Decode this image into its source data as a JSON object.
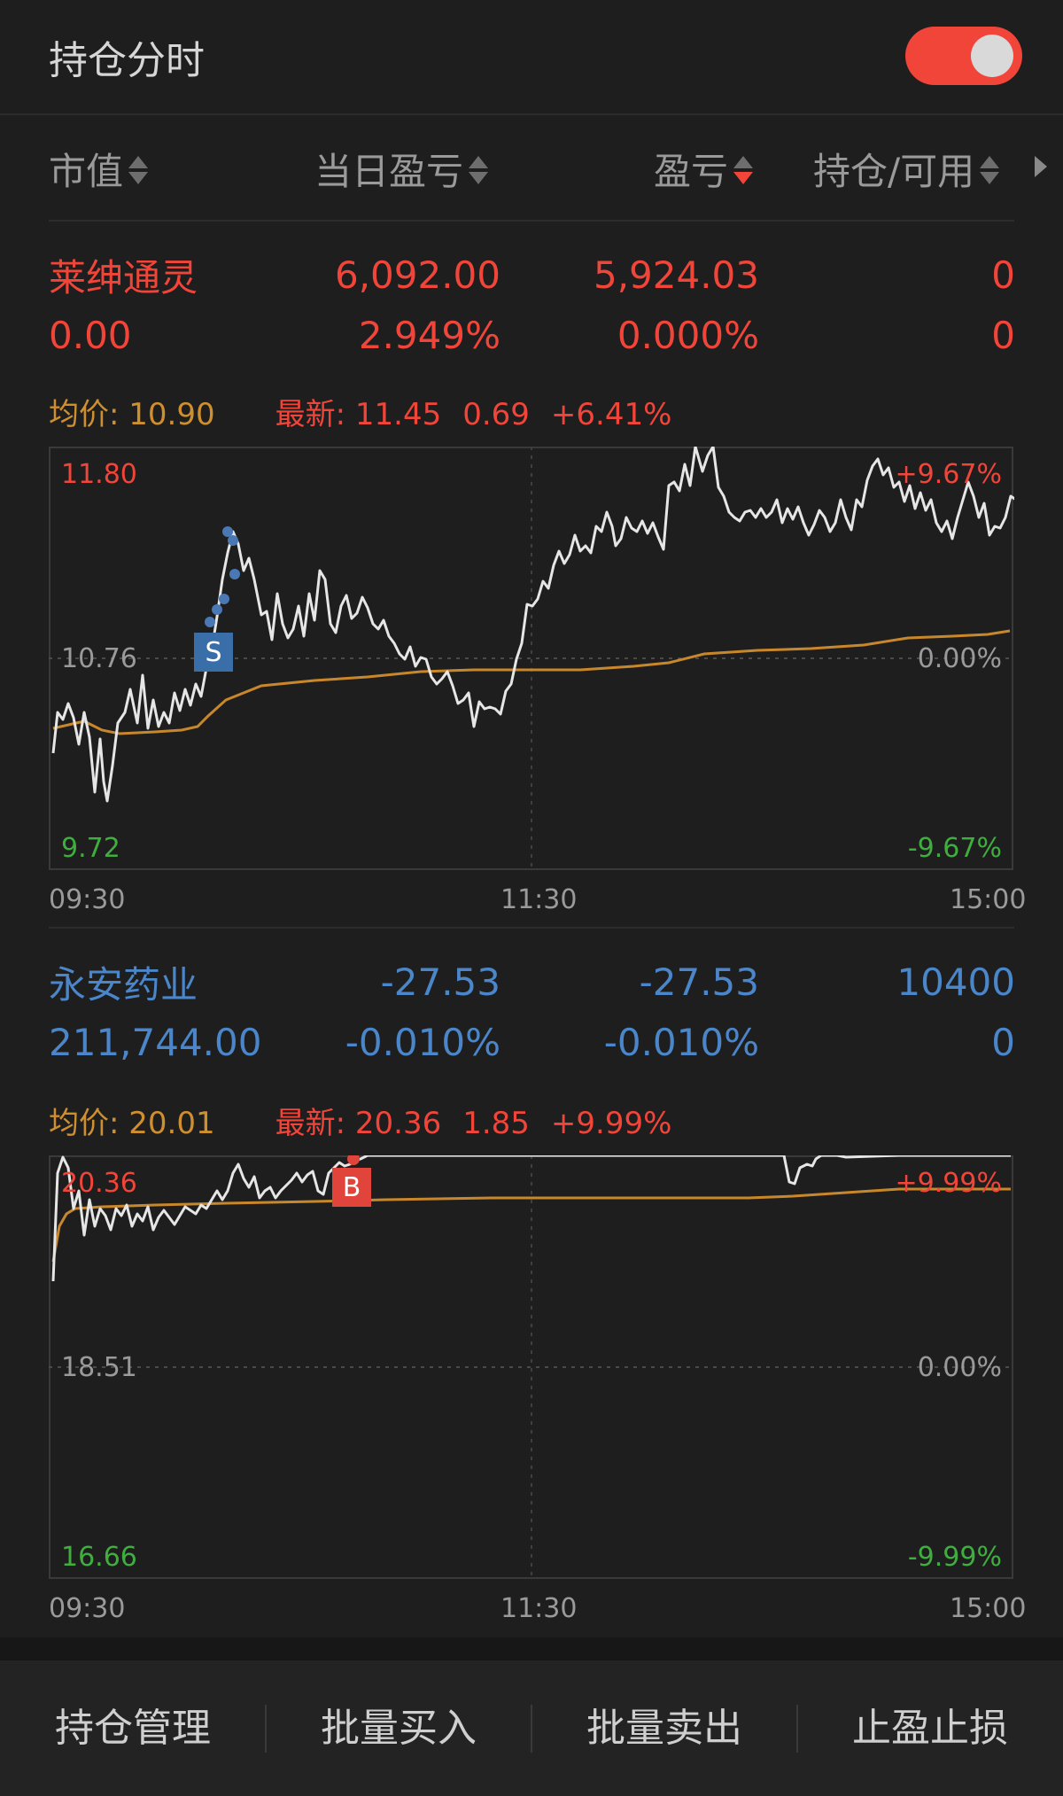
{
  "header": {
    "title": "持仓分时",
    "toggle_on": true,
    "accent": "#f2453a"
  },
  "columns": [
    {
      "label": "市值",
      "sort": "none"
    },
    {
      "label": "当日盈亏",
      "sort": "none"
    },
    {
      "label": "盈亏",
      "sort": "desc"
    },
    {
      "label": "持仓/可用",
      "sort": "none"
    }
  ],
  "stocks": [
    {
      "name": "莱绅通灵",
      "color": "#f2453a",
      "day_pnl": "6,092.00",
      "pnl": "5,924.03",
      "position": "0",
      "market_value": "0.00",
      "day_pnl_pct": "2.949%",
      "pnl_pct": "0.000%",
      "available": "0",
      "avg_price_label": "均价: 10.90",
      "latest_label": "最新: 11.45",
      "change": "0.69",
      "change_pct": "+6.41%",
      "chart": {
        "y_high": "11.80",
        "y_mid": "10.76",
        "y_low": "9.72",
        "pct_high": "+9.67%",
        "pct_mid": "0.00%",
        "pct_low": "-9.67%",
        "marker": "S",
        "marker_color": "#3a6ea8",
        "time_start": "09:30",
        "time_mid": "11:30",
        "time_end": "15:00"
      }
    },
    {
      "name": "永安药业",
      "color": "#4a86c9",
      "day_pnl": "-27.53",
      "pnl": "-27.53",
      "position": "10400",
      "market_value": "211,744.00",
      "day_pnl_pct": "-0.010%",
      "pnl_pct": "-0.010%",
      "available": "0",
      "avg_price_label": "均价: 20.01",
      "latest_label": "最新: 20.36",
      "change": "1.85",
      "change_pct": "+9.99%",
      "chart": {
        "y_high": "20.36",
        "y_mid": "18.51",
        "y_low": "16.66",
        "pct_high": "+9.99%",
        "pct_mid": "0.00%",
        "pct_low": "-9.99%",
        "marker": "B",
        "marker_color": "#e0443a",
        "time_start": "09:30",
        "time_mid": "11:30",
        "time_end": "15:00"
      }
    }
  ],
  "bottom_bar": [
    "持仓管理",
    "批量买入",
    "批量卖出",
    "止盈止损"
  ]
}
